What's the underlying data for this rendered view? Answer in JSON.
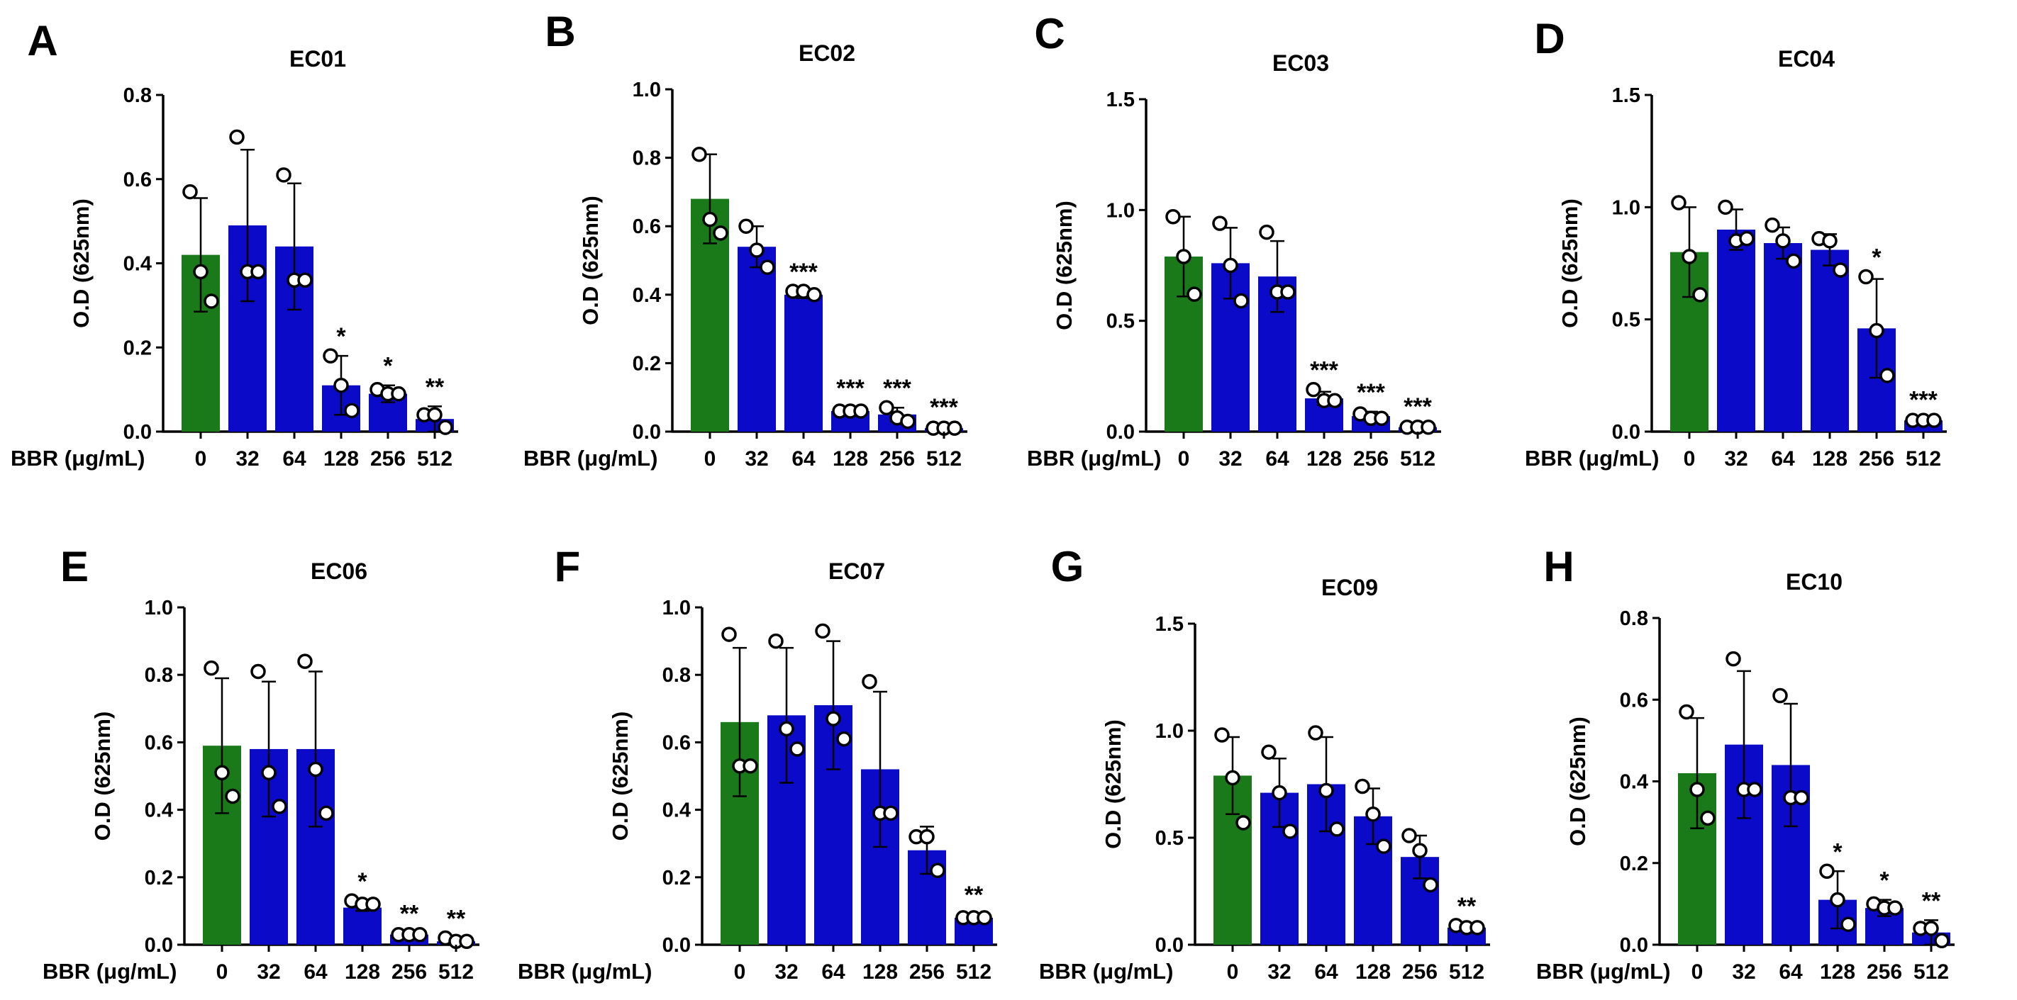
{
  "colors": {
    "control": "#1a7a1a",
    "treated": "#0a0ac8",
    "ink": "#000000",
    "dot_fill": "#ffffff"
  },
  "chart_data": [
    {
      "type": "bar",
      "panel": "A",
      "title": "EC01",
      "ylabel": "O.D (625nm)",
      "xlabel": "BBR (μg/mL)",
      "categories": [
        "0",
        "32",
        "64",
        "128",
        "256",
        "512"
      ],
      "values": [
        0.42,
        0.49,
        0.44,
        0.11,
        0.09,
        0.03
      ],
      "errors": [
        0.135,
        0.18,
        0.15,
        0.07,
        0.02,
        0.03
      ],
      "points": [
        [
          0.57,
          0.38,
          0.31
        ],
        [
          0.7,
          0.38,
          0.38
        ],
        [
          0.61,
          0.36,
          0.36
        ],
        [
          0.18,
          0.11,
          0.05
        ],
        [
          0.1,
          0.09,
          0.09
        ],
        [
          0.04,
          0.04,
          0.01
        ]
      ],
      "significance": [
        "",
        "",
        "",
        "*",
        "*",
        "**"
      ],
      "ylim": [
        0,
        0.8
      ],
      "yticks": [
        "0.0",
        "0.2",
        "0.4",
        "0.6",
        "0.8"
      ]
    },
    {
      "type": "bar",
      "panel": "B",
      "title": "EC02",
      "ylabel": "O.D (625nm)",
      "xlabel": "BBR (μg/mL)",
      "categories": [
        "0",
        "32",
        "64",
        "128",
        "256",
        "512"
      ],
      "values": [
        0.68,
        0.54,
        0.4,
        0.06,
        0.05,
        0.01
      ],
      "errors": [
        0.13,
        0.06,
        0.01,
        0.01,
        0.02,
        0.005
      ],
      "points": [
        [
          0.81,
          0.62,
          0.58
        ],
        [
          0.6,
          0.53,
          0.48
        ],
        [
          0.41,
          0.41,
          0.4
        ],
        [
          0.06,
          0.06,
          0.06
        ],
        [
          0.07,
          0.04,
          0.03
        ],
        [
          0.01,
          0.01,
          0.01
        ]
      ],
      "significance": [
        "",
        "",
        "***",
        "***",
        "***",
        "***"
      ],
      "ylim": [
        0,
        1.0
      ],
      "yticks": [
        "0.0",
        "0.2",
        "0.4",
        "0.6",
        "0.8",
        "1.0"
      ]
    },
    {
      "type": "bar",
      "panel": "C",
      "title": "EC03",
      "ylabel": "O.D (625nm)",
      "xlabel": "BBR (μg/mL)",
      "categories": [
        "0",
        "32",
        "64",
        "128",
        "256",
        "512"
      ],
      "values": [
        0.79,
        0.76,
        0.7,
        0.15,
        0.07,
        0.02
      ],
      "errors": [
        0.18,
        0.16,
        0.16,
        0.03,
        0.02,
        0.005
      ],
      "points": [
        [
          0.97,
          0.79,
          0.62
        ],
        [
          0.94,
          0.75,
          0.59
        ],
        [
          0.9,
          0.63,
          0.63
        ],
        [
          0.19,
          0.14,
          0.14
        ],
        [
          0.08,
          0.06,
          0.06
        ],
        [
          0.02,
          0.02,
          0.02
        ]
      ],
      "significance": [
        "",
        "",
        "",
        "***",
        "***",
        "***"
      ],
      "ylim": [
        0,
        1.5
      ],
      "yticks": [
        "0.0",
        "0.5",
        "1.0",
        "1.5"
      ]
    },
    {
      "type": "bar",
      "panel": "D",
      "title": "EC04",
      "ylabel": "O.D (625nm)",
      "xlabel": "BBR (μg/mL)",
      "categories": [
        "0",
        "32",
        "64",
        "128",
        "256",
        "512"
      ],
      "values": [
        0.8,
        0.9,
        0.84,
        0.81,
        0.46,
        0.05
      ],
      "errors": [
        0.2,
        0.09,
        0.07,
        0.07,
        0.22,
        0.005
      ],
      "points": [
        [
          1.02,
          0.78,
          0.61
        ],
        [
          1.0,
          0.85,
          0.86
        ],
        [
          0.92,
          0.85,
          0.76
        ],
        [
          0.86,
          0.85,
          0.72
        ],
        [
          0.69,
          0.45,
          0.25
        ],
        [
          0.05,
          0.05,
          0.05
        ]
      ],
      "significance": [
        "",
        "",
        "",
        "",
        "*",
        "***"
      ],
      "ylim": [
        0,
        1.5
      ],
      "yticks": [
        "0.0",
        "0.5",
        "1.0",
        "1.5"
      ]
    },
    {
      "type": "bar",
      "panel": "E",
      "title": "EC06",
      "ylabel": "O.D (625nm)",
      "xlabel": "BBR (μg/mL)",
      "categories": [
        "0",
        "32",
        "64",
        "128",
        "256",
        "512"
      ],
      "values": [
        0.59,
        0.58,
        0.58,
        0.11,
        0.03,
        0.01
      ],
      "errors": [
        0.2,
        0.2,
        0.23,
        0.01,
        0.005,
        0.005
      ],
      "points": [
        [
          0.82,
          0.51,
          0.44
        ],
        [
          0.81,
          0.51,
          0.41
        ],
        [
          0.84,
          0.52,
          0.39
        ],
        [
          0.13,
          0.12,
          0.12
        ],
        [
          0.03,
          0.03,
          0.03
        ],
        [
          0.02,
          0.01,
          0.01
        ]
      ],
      "significance": [
        "",
        "",
        "",
        "*",
        "**",
        "**"
      ],
      "ylim": [
        0,
        1.0
      ],
      "yticks": [
        "0.0",
        "0.2",
        "0.4",
        "0.6",
        "0.8",
        "1.0"
      ]
    },
    {
      "type": "bar",
      "panel": "F",
      "title": "EC07",
      "ylabel": "O.D (625nm)",
      "xlabel": "BBR (μg/mL)",
      "categories": [
        "0",
        "32",
        "64",
        "128",
        "256",
        "512"
      ],
      "values": [
        0.66,
        0.68,
        0.71,
        0.52,
        0.28,
        0.08
      ],
      "errors": [
        0.22,
        0.2,
        0.19,
        0.23,
        0.07,
        0.01
      ],
      "points": [
        [
          0.92,
          0.53,
          0.53
        ],
        [
          0.9,
          0.64,
          0.58
        ],
        [
          0.93,
          0.67,
          0.61
        ],
        [
          0.78,
          0.39,
          0.39
        ],
        [
          0.32,
          0.32,
          0.22
        ],
        [
          0.08,
          0.08,
          0.08
        ]
      ],
      "significance": [
        "",
        "",
        "",
        "",
        "",
        "**"
      ],
      "ylim": [
        0,
        1.0
      ],
      "yticks": [
        "0.0",
        "0.2",
        "0.4",
        "0.6",
        "0.8",
        "1.0"
      ]
    },
    {
      "type": "bar",
      "panel": "G",
      "title": "EC09",
      "ylabel": "O.D (625nm)",
      "xlabel": "BBR (μg/mL)",
      "categories": [
        "0",
        "32",
        "64",
        "128",
        "256",
        "512"
      ],
      "values": [
        0.79,
        0.71,
        0.75,
        0.6,
        0.41,
        0.08
      ],
      "errors": [
        0.18,
        0.16,
        0.22,
        0.13,
        0.1,
        0.01
      ],
      "points": [
        [
          0.98,
          0.78,
          0.57
        ],
        [
          0.9,
          0.71,
          0.53
        ],
        [
          0.99,
          0.72,
          0.54
        ],
        [
          0.74,
          0.61,
          0.46
        ],
        [
          0.51,
          0.44,
          0.28
        ],
        [
          0.09,
          0.08,
          0.08
        ]
      ],
      "significance": [
        "",
        "",
        "",
        "",
        "",
        "**"
      ],
      "ylim": [
        0,
        1.5
      ],
      "yticks": [
        "0.0",
        "0.5",
        "1.0",
        "1.5"
      ]
    },
    {
      "type": "bar",
      "panel": "H",
      "title": "EC10",
      "ylabel": "O.D (625nm)",
      "xlabel": "BBR (μg/mL)",
      "categories": [
        "0",
        "32",
        "64",
        "128",
        "256",
        "512"
      ],
      "values": [
        0.42,
        0.49,
        0.44,
        0.11,
        0.09,
        0.03
      ],
      "errors": [
        0.135,
        0.18,
        0.15,
        0.07,
        0.02,
        0.03
      ],
      "points": [
        [
          0.57,
          0.38,
          0.31
        ],
        [
          0.7,
          0.38,
          0.38
        ],
        [
          0.61,
          0.36,
          0.36
        ],
        [
          0.18,
          0.11,
          0.05
        ],
        [
          0.1,
          0.09,
          0.09
        ],
        [
          0.04,
          0.04,
          0.01
        ]
      ],
      "significance": [
        "",
        "",
        "",
        "*",
        "*",
        "**"
      ],
      "ylim": [
        0,
        0.8
      ],
      "yticks": [
        "0.0",
        "0.2",
        "0.4",
        "0.6",
        "0.8"
      ]
    }
  ]
}
